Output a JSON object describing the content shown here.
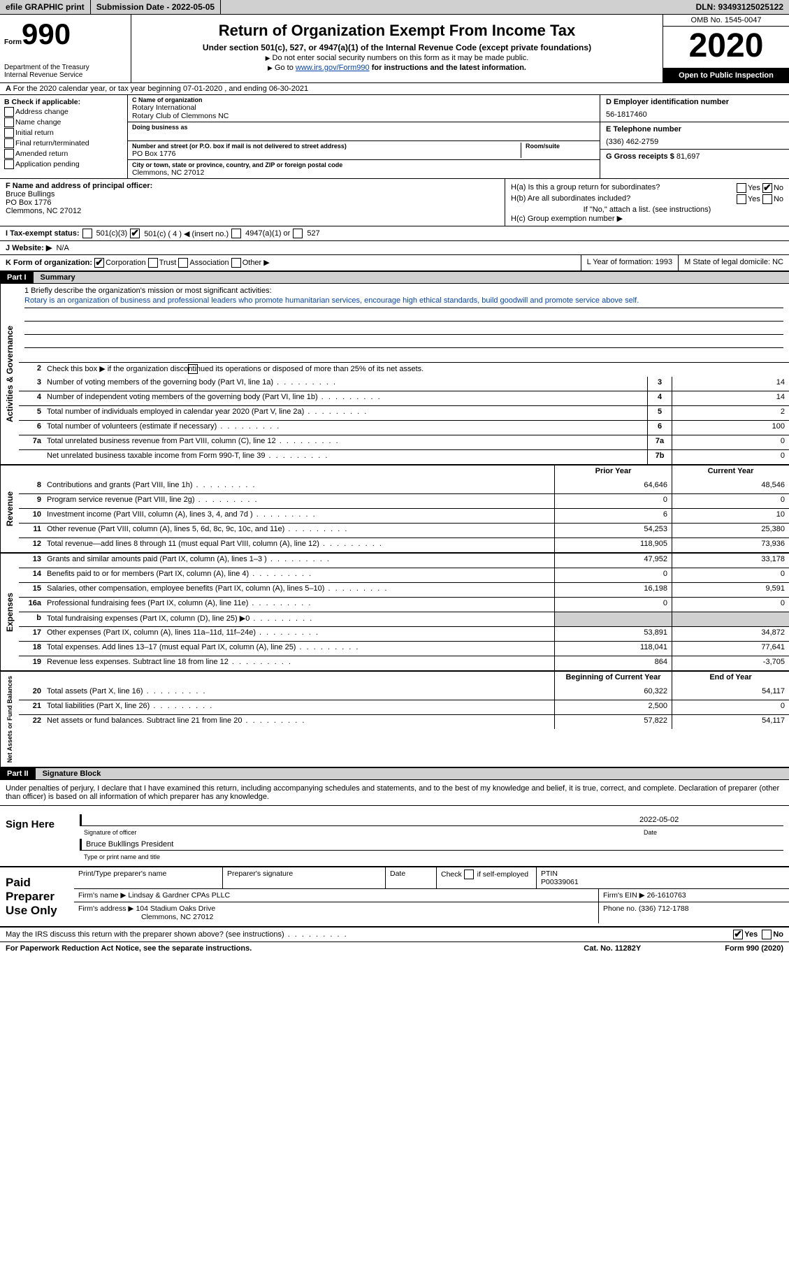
{
  "topbar": {
    "efile": "efile GRAPHIC print",
    "submission": "Submission Date - 2022-05-05",
    "dln": "DLN: 93493125025122"
  },
  "header": {
    "form_label": "Form",
    "form_num": "990",
    "dept": "Department of the Treasury\nInternal Revenue Service",
    "title": "Return of Organization Exempt From Income Tax",
    "sub": "Under section 501(c), 527, or 4947(a)(1) of the Internal Revenue Code (except private foundations)",
    "note1": "Do not enter social security numbers on this form as it may be made public.",
    "note2_pre": "Go to ",
    "note2_link": "www.irs.gov/Form990",
    "note2_post": " for instructions and the latest information.",
    "omb": "OMB No. 1545-0047",
    "year": "2020",
    "inspect": "Open to Public Inspection"
  },
  "row_a": "For the 2020 calendar year, or tax year beginning 07-01-2020    , and ending 06-30-2021",
  "col_b": {
    "hdr": "B Check if applicable:",
    "opts": [
      "Address change",
      "Name change",
      "Initial return",
      "Final return/terminated",
      "Amended return",
      "Application pending"
    ]
  },
  "col_c": {
    "name_lbl": "C Name of organization",
    "name1": "Rotary International",
    "name2": "Rotary Club of Clemmons NC",
    "dba_lbl": "Doing business as",
    "addr_lbl": "Number and street (or P.O. box if mail is not delivered to street address)",
    "room_lbl": "Room/suite",
    "addr": "PO Box 1776",
    "city_lbl": "City or town, state or province, country, and ZIP or foreign postal code",
    "city": "Clemmons, NC  27012"
  },
  "col_d": {
    "ein_lbl": "D Employer identification number",
    "ein": "56-1817460",
    "tel_lbl": "E Telephone number",
    "tel": "(336) 462-2759",
    "gross_lbl": "G Gross receipts $ ",
    "gross": "81,697"
  },
  "col_f": {
    "lbl": "F Name and address of principal officer:",
    "name": "Bruce Bullings",
    "addr": "PO Box 1776",
    "city": "Clemmons, NC  27012"
  },
  "col_h": {
    "a": "H(a)  Is this a group return for subordinates?",
    "b": "H(b)  Are all subordinates included?",
    "bnote": "If \"No,\" attach a list. (see instructions)",
    "c": "H(c)  Group exemption number ▶"
  },
  "row_i": {
    "lbl": "I    Tax-exempt status:",
    "o1": "501(c)(3)",
    "o2": "501(c) ( 4 ) ◀ (insert no.)",
    "o3": "4947(a)(1) or",
    "o4": "527"
  },
  "row_j": {
    "lbl": "J   Website: ▶",
    "val": "N/A"
  },
  "row_k": {
    "lbl": "K Form of organization:",
    "opts": [
      "Corporation",
      "Trust",
      "Association",
      "Other ▶"
    ]
  },
  "row_l": "L Year of formation: 1993",
  "row_m": "M State of legal domicile: NC",
  "part1": {
    "hdr": "Part I",
    "title": "Summary"
  },
  "mission": {
    "lbl": "1   Briefly describe the organization's mission or most significant activities:",
    "text": "Rotary is an organization of business and professional leaders who promote humanitarian services, encourage high ethical standards, build goodwill and promote service above self."
  },
  "line2": "Check this box ▶       if the organization discontinued its operations or disposed of more than 25% of its net assets.",
  "governance_lines": [
    {
      "n": "3",
      "d": "Number of voting members of the governing body (Part VI, line 1a)",
      "b": "3",
      "v": "14"
    },
    {
      "n": "4",
      "d": "Number of independent voting members of the governing body (Part VI, line 1b)",
      "b": "4",
      "v": "14"
    },
    {
      "n": "5",
      "d": "Total number of individuals employed in calendar year 2020 (Part V, line 2a)",
      "b": "5",
      "v": "2"
    },
    {
      "n": "6",
      "d": "Total number of volunteers (estimate if necessary)",
      "b": "6",
      "v": "100"
    },
    {
      "n": "7a",
      "d": "Total unrelated business revenue from Part VIII, column (C), line 12",
      "b": "7a",
      "v": "0"
    },
    {
      "n": "",
      "d": "Net unrelated business taxable income from Form 990-T, line 39",
      "b": "7b",
      "v": "0"
    }
  ],
  "rev_hdr": {
    "prior": "Prior Year",
    "current": "Current Year"
  },
  "revenue_lines": [
    {
      "n": "8",
      "d": "Contributions and grants (Part VIII, line 1h)",
      "p": "64,646",
      "c": "48,546"
    },
    {
      "n": "9",
      "d": "Program service revenue (Part VIII, line 2g)",
      "p": "0",
      "c": "0"
    },
    {
      "n": "10",
      "d": "Investment income (Part VIII, column (A), lines 3, 4, and 7d )",
      "p": "6",
      "c": "10"
    },
    {
      "n": "11",
      "d": "Other revenue (Part VIII, column (A), lines 5, 6d, 8c, 9c, 10c, and 11e)",
      "p": "54,253",
      "c": "25,380"
    },
    {
      "n": "12",
      "d": "Total revenue—add lines 8 through 11 (must equal Part VIII, column (A), line 12)",
      "p": "118,905",
      "c": "73,936"
    }
  ],
  "expense_lines": [
    {
      "n": "13",
      "d": "Grants and similar amounts paid (Part IX, column (A), lines 1–3 )",
      "p": "47,952",
      "c": "33,178"
    },
    {
      "n": "14",
      "d": "Benefits paid to or for members (Part IX, column (A), line 4)",
      "p": "0",
      "c": "0"
    },
    {
      "n": "15",
      "d": "Salaries, other compensation, employee benefits (Part IX, column (A), lines 5–10)",
      "p": "16,198",
      "c": "9,591"
    },
    {
      "n": "16a",
      "d": "Professional fundraising fees (Part IX, column (A), line 11e)",
      "p": "0",
      "c": "0"
    },
    {
      "n": "b",
      "d": "Total fundraising expenses (Part IX, column (D), line 25) ▶0",
      "p": "",
      "c": "",
      "shade": true
    },
    {
      "n": "17",
      "d": "Other expenses (Part IX, column (A), lines 11a–11d, 11f–24e)",
      "p": "53,891",
      "c": "34,872"
    },
    {
      "n": "18",
      "d": "Total expenses. Add lines 13–17 (must equal Part IX, column (A), line 25)",
      "p": "118,041",
      "c": "77,641"
    },
    {
      "n": "19",
      "d": "Revenue less expenses. Subtract line 18 from line 12",
      "p": "864",
      "c": "-3,705"
    }
  ],
  "net_hdr": {
    "begin": "Beginning of Current Year",
    "end": "End of Year"
  },
  "net_lines": [
    {
      "n": "20",
      "d": "Total assets (Part X, line 16)",
      "p": "60,322",
      "c": "54,117"
    },
    {
      "n": "21",
      "d": "Total liabilities (Part X, line 26)",
      "p": "2,500",
      "c": "0"
    },
    {
      "n": "22",
      "d": "Net assets or fund balances. Subtract line 21 from line 20",
      "p": "57,822",
      "c": "54,117"
    }
  ],
  "side_labels": {
    "gov": "Activities & Governance",
    "rev": "Revenue",
    "exp": "Expenses",
    "net": "Net Assets or Fund Balances"
  },
  "part2": {
    "hdr": "Part II",
    "title": "Signature Block"
  },
  "declaration": "Under penalties of perjury, I declare that I have examined this return, including accompanying schedules and statements, and to the best of my knowledge and belief, it is true, correct, and complete. Declaration of preparer (other than officer) is based on all information of which preparer has any knowledge.",
  "sign": {
    "here": "Sign Here",
    "date": "2022-05-02",
    "sig_lbl": "Signature of officer",
    "date_lbl": "Date",
    "name": "Bruce Bukllings President",
    "name_lbl": "Type or print name and title"
  },
  "prep": {
    "left": "Paid Preparer Use Only",
    "h1": "Print/Type preparer's name",
    "h2": "Preparer's signature",
    "h3": "Date",
    "h4_a": "Check",
    "h4_b": "if self-employed",
    "h5": "PTIN",
    "ptin": "P00339061",
    "firm_lbl": "Firm's name    ▶",
    "firm": "Lindsay & Gardner CPAs PLLC",
    "ein_lbl": "Firm's EIN ▶",
    "ein": "26-1610763",
    "addr_lbl": "Firm's address ▶",
    "addr1": "104 Stadium Oaks Drive",
    "addr2": "Clemmons, NC  27012",
    "phone_lbl": "Phone no.",
    "phone": "(336) 712-1788"
  },
  "footer": {
    "discuss": "May the IRS discuss this return with the preparer shown above? (see instructions)",
    "yes": "Yes",
    "no": "No",
    "pra": "For Paperwork Reduction Act Notice, see the separate instructions.",
    "cat": "Cat. No. 11282Y",
    "form": "Form 990 (2020)"
  }
}
